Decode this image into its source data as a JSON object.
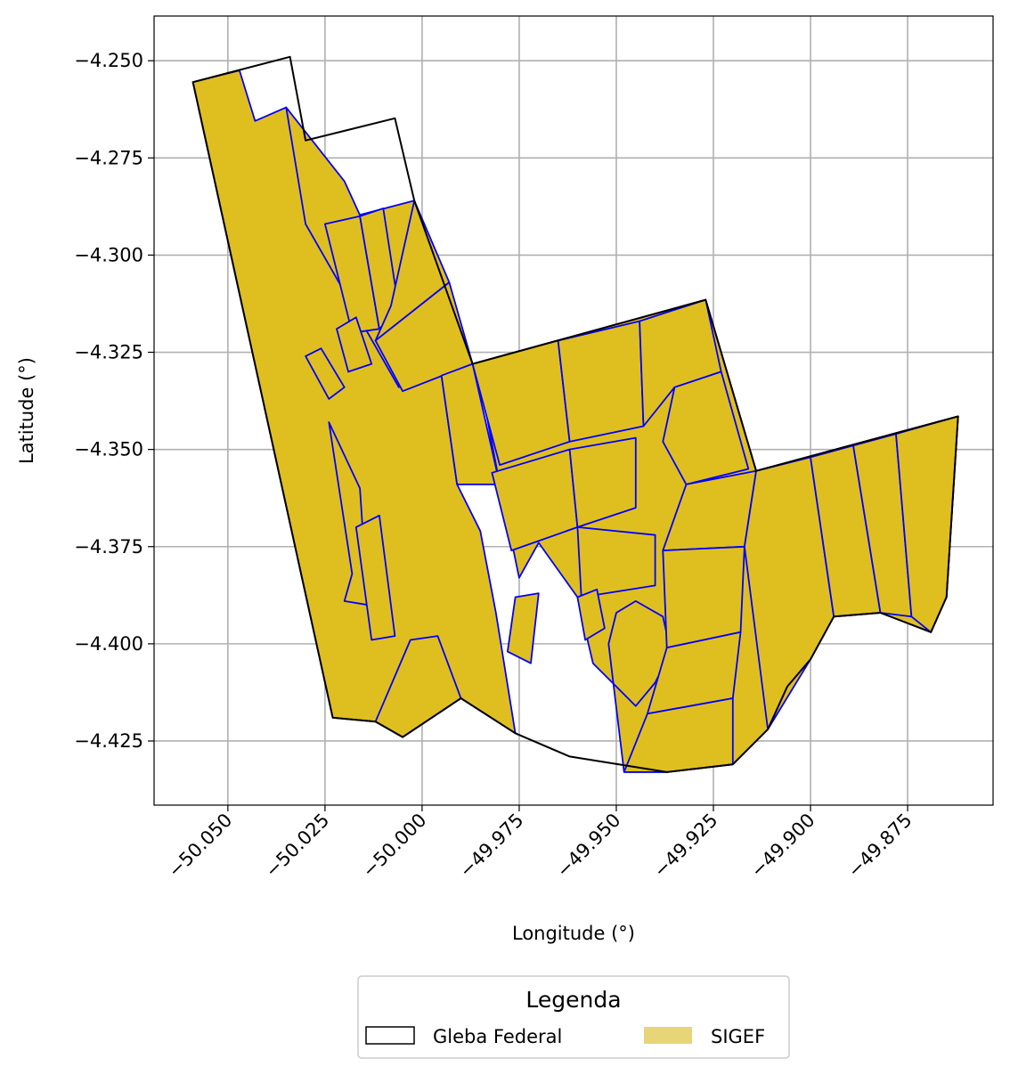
{
  "chart_data": {
    "type": "map",
    "xlabel": "Longitude (°)",
    "ylabel": "Latitude (°)",
    "xlim": [
      -50.069,
      -49.853
    ],
    "ylim": [
      -4.4415,
      -4.2385
    ],
    "xticks": [
      -50.05,
      -50.025,
      -50.0,
      -49.975,
      -49.95,
      -49.925,
      -49.9,
      -49.875
    ],
    "xtick_labels": [
      "−50.050",
      "−50.025",
      "−50.000",
      "−49.975",
      "−49.950",
      "−49.925",
      "−49.900",
      "−49.875"
    ],
    "yticks": [
      -4.25,
      -4.275,
      -4.3,
      -4.325,
      -4.35,
      -4.375,
      -4.4,
      -4.425
    ],
    "ytick_labels": [
      "−4.250",
      "−4.275",
      "−4.300",
      "−4.325",
      "−4.350",
      "−4.375",
      "−4.400",
      "−4.425"
    ],
    "grid": true,
    "legend": {
      "title": "Legenda",
      "placement": "bottom-center",
      "entries": [
        {
          "label": "Gleba Federal",
          "style": "outline",
          "color": "#000000"
        },
        {
          "label": "SIGEF",
          "style": "fill",
          "color": "#e8d577"
        }
      ]
    },
    "colors": {
      "gleba_edge": "#000000",
      "sigef_fill": "#dfbf20",
      "sigef_edge": "#0000ff",
      "grid": "#b0b0b0"
    },
    "gleba_boundary": [
      [
        -50.059,
        -4.2555
      ],
      [
        -50.034,
        -4.249
      ],
      [
        -50.03,
        -4.2705
      ],
      [
        -50.007,
        -4.2648
      ],
      [
        -50.002,
        -4.286
      ],
      [
        -49.987,
        -4.328
      ],
      [
        -49.927,
        -4.3115
      ],
      [
        -49.914,
        -4.3555
      ],
      [
        -49.862,
        -4.3415
      ],
      [
        -49.865,
        -4.388
      ],
      [
        -49.869,
        -4.397
      ],
      [
        -49.882,
        -4.392
      ],
      [
        -49.894,
        -4.393
      ],
      [
        -49.9,
        -4.404
      ],
      [
        -49.906,
        -4.411
      ],
      [
        -49.911,
        -4.422
      ],
      [
        -49.92,
        -4.431
      ],
      [
        -49.937,
        -4.433
      ],
      [
        -49.962,
        -4.429
      ],
      [
        -49.976,
        -4.423
      ],
      [
        -49.99,
        -4.414
      ],
      [
        -50.005,
        -4.424
      ],
      [
        -50.012,
        -4.42
      ],
      [
        -50.023,
        -4.419
      ]
    ],
    "sigef_area": [
      [
        -50.059,
        -4.2555
      ],
      [
        -50.047,
        -4.2525
      ],
      [
        -50.043,
        -4.2655
      ],
      [
        -50.035,
        -4.262
      ],
      [
        -50.025,
        -4.292
      ],
      [
        -50.002,
        -4.286
      ],
      [
        -49.987,
        -4.328
      ],
      [
        -49.927,
        -4.3115
      ],
      [
        -49.914,
        -4.3555
      ],
      [
        -49.862,
        -4.3415
      ],
      [
        -49.865,
        -4.388
      ],
      [
        -49.869,
        -4.397
      ],
      [
        -49.882,
        -4.392
      ],
      [
        -49.894,
        -4.393
      ],
      [
        -49.9,
        -4.404
      ],
      [
        -49.906,
        -4.411
      ],
      [
        -49.911,
        -4.422
      ],
      [
        -49.92,
        -4.431
      ],
      [
        -49.937,
        -4.433
      ],
      [
        -49.948,
        -4.433
      ],
      [
        -49.952,
        -4.4
      ],
      [
        -49.95,
        -4.392
      ],
      [
        -49.945,
        -4.389
      ],
      [
        -49.938,
        -4.393
      ],
      [
        -49.936,
        -4.402
      ],
      [
        -49.94,
        -4.41
      ],
      [
        -49.945,
        -4.416
      ],
      [
        -49.956,
        -4.405
      ],
      [
        -49.96,
        -4.388
      ],
      [
        -49.97,
        -4.374
      ],
      [
        -49.975,
        -4.383
      ],
      [
        -49.98,
        -4.359
      ],
      [
        -49.984,
        -4.338
      ],
      [
        -49.995,
        -4.331
      ],
      [
        -49.991,
        -4.359
      ],
      [
        -49.985,
        -4.371
      ],
      [
        -49.981,
        -4.392
      ],
      [
        -49.976,
        -4.423
      ],
      [
        -49.99,
        -4.414
      ],
      [
        -50.005,
        -4.424
      ],
      [
        -50.012,
        -4.42
      ],
      [
        -50.023,
        -4.419
      ]
    ],
    "sigef_parcels": [
      [
        [
          -50.035,
          -4.262
        ],
        [
          -50.02,
          -4.281
        ],
        [
          -49.998,
          -4.329
        ],
        [
          -50.006,
          -4.334
        ],
        [
          -50.03,
          -4.292
        ]
      ],
      [
        [
          -50.025,
          -4.292
        ],
        [
          -50.016,
          -4.29
        ],
        [
          -50.011,
          -4.319
        ],
        [
          -50.018,
          -4.32
        ]
      ],
      [
        [
          -50.016,
          -4.29
        ],
        [
          -50.01,
          -4.288
        ],
        [
          -50.006,
          -4.314
        ],
        [
          -50.011,
          -4.319
        ]
      ],
      [
        [
          -50.008,
          -4.313
        ],
        [
          -50.002,
          -4.286
        ],
        [
          -49.993,
          -4.307
        ],
        [
          -50.012,
          -4.322
        ]
      ],
      [
        [
          -50.012,
          -4.322
        ],
        [
          -49.993,
          -4.307
        ],
        [
          -49.987,
          -4.328
        ],
        [
          -50.005,
          -4.335
        ]
      ],
      [
        [
          -50.03,
          -4.326
        ],
        [
          -50.026,
          -4.324
        ],
        [
          -50.02,
          -4.334
        ],
        [
          -50.024,
          -4.337
        ]
      ],
      [
        [
          -50.022,
          -4.319
        ],
        [
          -50.017,
          -4.316
        ],
        [
          -50.013,
          -4.328
        ],
        [
          -50.019,
          -4.33
        ]
      ],
      [
        [
          -50.024,
          -4.343
        ],
        [
          -50.018,
          -4.382
        ],
        [
          -50.02,
          -4.389
        ],
        [
          -50.014,
          -4.39
        ],
        [
          -50.016,
          -4.36
        ]
      ],
      [
        [
          -50.017,
          -4.37
        ],
        [
          -50.011,
          -4.367
        ],
        [
          -50.007,
          -4.398
        ],
        [
          -50.013,
          -4.399
        ]
      ],
      [
        [
          -50.003,
          -4.399
        ],
        [
          -49.996,
          -4.398
        ],
        [
          -49.99,
          -4.414
        ],
        [
          -50.005,
          -4.424
        ],
        [
          -50.012,
          -4.42
        ]
      ],
      [
        [
          -49.995,
          -4.331
        ],
        [
          -49.987,
          -4.328
        ],
        [
          -49.98,
          -4.359
        ],
        [
          -49.991,
          -4.359
        ]
      ],
      [
        [
          -49.987,
          -4.328
        ],
        [
          -49.965,
          -4.322
        ],
        [
          -49.962,
          -4.348
        ],
        [
          -49.98,
          -4.354
        ]
      ],
      [
        [
          -49.965,
          -4.322
        ],
        [
          -49.944,
          -4.317
        ],
        [
          -49.943,
          -4.344
        ],
        [
          -49.962,
          -4.348
        ]
      ],
      [
        [
          -49.944,
          -4.317
        ],
        [
          -49.927,
          -4.3115
        ],
        [
          -49.923,
          -4.33
        ],
        [
          -49.935,
          -4.334
        ],
        [
          -49.943,
          -4.344
        ]
      ],
      [
        [
          -49.982,
          -4.356
        ],
        [
          -49.962,
          -4.35
        ],
        [
          -49.96,
          -4.37
        ],
        [
          -49.977,
          -4.376
        ]
      ],
      [
        [
          -49.962,
          -4.35
        ],
        [
          -49.945,
          -4.347
        ],
        [
          -49.945,
          -4.365
        ],
        [
          -49.96,
          -4.37
        ]
      ],
      [
        [
          -49.935,
          -4.334
        ],
        [
          -49.923,
          -4.33
        ],
        [
          -49.916,
          -4.355
        ],
        [
          -49.932,
          -4.359
        ],
        [
          -49.938,
          -4.348
        ]
      ],
      [
        [
          -49.932,
          -4.359
        ],
        [
          -49.914,
          -4.3555
        ],
        [
          -49.917,
          -4.375
        ],
        [
          -49.938,
          -4.376
        ]
      ],
      [
        [
          -49.96,
          -4.37
        ],
        [
          -49.94,
          -4.372
        ],
        [
          -49.94,
          -4.385
        ],
        [
          -49.959,
          -4.388
        ]
      ],
      [
        [
          -49.938,
          -4.376
        ],
        [
          -49.917,
          -4.375
        ],
        [
          -49.918,
          -4.397
        ],
        [
          -49.937,
          -4.401
        ]
      ],
      [
        [
          -49.937,
          -4.401
        ],
        [
          -49.918,
          -4.397
        ],
        [
          -49.92,
          -4.414
        ],
        [
          -49.942,
          -4.418
        ]
      ],
      [
        [
          -49.942,
          -4.418
        ],
        [
          -49.92,
          -4.414
        ],
        [
          -49.92,
          -4.431
        ],
        [
          -49.937,
          -4.433
        ],
        [
          -49.948,
          -4.433
        ]
      ],
      [
        [
          -49.914,
          -4.3555
        ],
        [
          -49.9,
          -4.352
        ],
        [
          -49.894,
          -4.393
        ],
        [
          -49.9,
          -4.404
        ],
        [
          -49.911,
          -4.422
        ],
        [
          -49.917,
          -4.375
        ]
      ],
      [
        [
          -49.9,
          -4.352
        ],
        [
          -49.889,
          -4.349
        ],
        [
          -49.882,
          -4.392
        ],
        [
          -49.894,
          -4.393
        ]
      ],
      [
        [
          -49.889,
          -4.349
        ],
        [
          -49.878,
          -4.346
        ],
        [
          -49.874,
          -4.393
        ],
        [
          -49.882,
          -4.392
        ]
      ],
      [
        [
          -49.878,
          -4.346
        ],
        [
          -49.862,
          -4.3415
        ],
        [
          -49.865,
          -4.388
        ],
        [
          -49.869,
          -4.397
        ],
        [
          -49.874,
          -4.393
        ]
      ],
      [
        [
          -49.96,
          -4.388
        ],
        [
          -49.955,
          -4.386
        ],
        [
          -49.953,
          -4.396
        ],
        [
          -49.958,
          -4.399
        ]
      ],
      [
        [
          -49.976,
          -4.388
        ],
        [
          -49.97,
          -4.387
        ],
        [
          -49.972,
          -4.405
        ],
        [
          -49.978,
          -4.402
        ]
      ]
    ]
  }
}
